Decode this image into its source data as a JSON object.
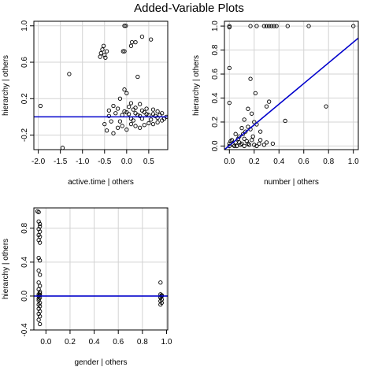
{
  "title": "Added-Variable Plots",
  "chart_data": [
    {
      "type": "scatter",
      "xlabel": "active.time | others",
      "ylabel": "hierarchy  | others",
      "xlim": [
        -2.1,
        0.93
      ],
      "ylim": [
        -0.36,
        1.05
      ],
      "xticks": [
        -2.0,
        -1.5,
        -1.0,
        -0.5,
        0.0,
        0.5
      ],
      "xtick_labels": [
        "-2.0",
        "-1.5",
        "-1.0",
        "-0.5",
        "0.0",
        "0.5"
      ],
      "yticks": [
        -0.2,
        0.2,
        0.6,
        1.0
      ],
      "ytick_labels": [
        "-0.2",
        "0.2",
        "0.6",
        "1.0"
      ],
      "grid": true,
      "fit_line": {
        "x": [
          -2.1,
          0.93
        ],
        "y": [
          0.0,
          0.0
        ],
        "color": "#0000cc"
      },
      "points": [
        [
          -1.95,
          0.12
        ],
        [
          -1.45,
          -0.34
        ],
        [
          -1.3,
          0.47
        ],
        [
          -0.6,
          0.66
        ],
        [
          -0.58,
          0.7
        ],
        [
          -0.55,
          0.74
        ],
        [
          -0.52,
          0.78
        ],
        [
          -0.5,
          0.68
        ],
        [
          -0.48,
          0.65
        ],
        [
          -0.45,
          0.72
        ],
        [
          -0.05,
          1.0
        ],
        [
          -0.02,
          1.0
        ],
        [
          -0.08,
          0.72
        ],
        [
          -0.05,
          0.72
        ],
        [
          0.1,
          0.78
        ],
        [
          0.12,
          0.82
        ],
        [
          0.2,
          0.82
        ],
        [
          0.35,
          0.88
        ],
        [
          0.55,
          0.85
        ],
        [
          0.25,
          0.44
        ],
        [
          -0.05,
          0.3
        ],
        [
          0.0,
          0.26
        ],
        [
          -0.15,
          0.2
        ],
        [
          0.1,
          0.15
        ],
        [
          0.3,
          0.14
        ],
        [
          -0.3,
          0.12
        ],
        [
          0.2,
          0.1
        ],
        [
          0.45,
          0.09
        ],
        [
          0.6,
          0.08
        ],
        [
          -0.2,
          0.09
        ],
        [
          0.05,
          0.11
        ],
        [
          -0.4,
          0.07
        ],
        [
          0.7,
          0.06
        ],
        [
          0.35,
          0.07
        ],
        [
          0.15,
          0.08
        ],
        [
          -0.35,
          -0.05
        ],
        [
          -0.5,
          -0.08
        ],
        [
          -0.45,
          -0.15
        ],
        [
          -0.3,
          -0.18
        ],
        [
          -0.2,
          -0.12
        ],
        [
          -0.1,
          -0.1
        ],
        [
          0.0,
          -0.14
        ],
        [
          0.1,
          -0.08
        ],
        [
          0.2,
          -0.1
        ],
        [
          0.3,
          -0.12
        ],
        [
          0.4,
          -0.09
        ],
        [
          0.5,
          -0.07
        ],
        [
          0.6,
          -0.08
        ],
        [
          0.7,
          -0.06
        ],
        [
          0.8,
          -0.04
        ],
        [
          0.85,
          -0.02
        ],
        [
          -0.25,
          0.04
        ],
        [
          0.05,
          0.03
        ],
        [
          0.25,
          0.02
        ],
        [
          0.45,
          0.03
        ],
        [
          0.65,
          0.01
        ],
        [
          -0.15,
          -0.05
        ],
        [
          0.15,
          -0.04
        ],
        [
          0.55,
          -0.03
        ],
        [
          -0.05,
          0.06
        ],
        [
          0.35,
          -0.02
        ],
        [
          0.75,
          0.02
        ],
        [
          -0.4,
          0.01
        ],
        [
          0.9,
          0.0
        ],
        [
          0.0,
          0.05
        ],
        [
          0.2,
          0.04
        ],
        [
          0.4,
          0.05
        ],
        [
          0.6,
          0.03
        ],
        [
          0.8,
          0.04
        ],
        [
          -0.1,
          0.02
        ],
        [
          0.1,
          -0.02
        ],
        [
          0.3,
          0.01
        ],
        [
          0.5,
          0.02
        ],
        [
          0.7,
          -0.01
        ]
      ]
    },
    {
      "type": "scatter",
      "xlabel": "number | others",
      "ylabel": "hierarchy  | others",
      "xlim": [
        -0.04,
        1.04
      ],
      "ylim": [
        -0.03,
        1.04
      ],
      "xticks": [
        0.0,
        0.2,
        0.4,
        0.6,
        0.8,
        1.0
      ],
      "xtick_labels": [
        "0.0",
        "0.2",
        "0.4",
        "0.6",
        "0.8",
        "1.0"
      ],
      "yticks": [
        0.0,
        0.2,
        0.4,
        0.6,
        0.8,
        1.0
      ],
      "ytick_labels": [
        "0.0",
        "0.2",
        "0.4",
        "0.6",
        "0.8",
        "1.0"
      ],
      "grid": true,
      "fit_line": {
        "x": [
          -0.04,
          1.04
        ],
        "y": [
          -0.03,
          0.9
        ],
        "color": "#0000cc"
      },
      "points": [
        [
          0.0,
          1.0
        ],
        [
          0.0,
          0.99
        ],
        [
          0.17,
          1.0
        ],
        [
          0.22,
          1.0
        ],
        [
          0.28,
          1.0
        ],
        [
          0.3,
          1.0
        ],
        [
          0.32,
          1.0
        ],
        [
          0.34,
          1.0
        ],
        [
          0.36,
          1.0
        ],
        [
          0.38,
          1.0
        ],
        [
          0.47,
          1.0
        ],
        [
          0.64,
          1.0
        ],
        [
          1.0,
          1.0
        ],
        [
          0.0,
          0.65
        ],
        [
          0.17,
          0.56
        ],
        [
          0.21,
          0.44
        ],
        [
          0.0,
          0.36
        ],
        [
          0.32,
          0.37
        ],
        [
          0.3,
          0.33
        ],
        [
          0.78,
          0.33
        ],
        [
          0.45,
          0.21
        ],
        [
          0.15,
          0.31
        ],
        [
          0.18,
          0.27
        ],
        [
          0.12,
          0.22
        ],
        [
          0.2,
          0.2
        ],
        [
          0.1,
          0.15
        ],
        [
          0.15,
          0.16
        ],
        [
          0.22,
          0.18
        ],
        [
          0.25,
          0.12
        ],
        [
          0.05,
          0.1
        ],
        [
          0.08,
          0.08
        ],
        [
          0.12,
          0.06
        ],
        [
          0.18,
          0.05
        ],
        [
          0.25,
          0.05
        ],
        [
          0.3,
          0.03
        ],
        [
          0.35,
          0.02
        ],
        [
          0.02,
          0.05
        ],
        [
          0.05,
          0.03
        ],
        [
          0.1,
          0.02
        ],
        [
          0.15,
          0.02
        ],
        [
          0.2,
          0.01
        ],
        [
          0.0,
          0.0
        ],
        [
          0.03,
          0.01
        ],
        [
          0.06,
          0.0
        ],
        [
          0.09,
          0.01
        ],
        [
          0.12,
          0.0
        ],
        [
          0.16,
          0.01
        ],
        [
          0.22,
          0.0
        ],
        [
          0.28,
          0.01
        ],
        [
          0.0,
          0.02
        ],
        [
          0.04,
          0.0
        ],
        [
          0.08,
          0.03
        ],
        [
          0.14,
          0.04
        ],
        [
          0.19,
          0.08
        ],
        [
          0.24,
          0.02
        ],
        [
          0.01,
          0.04
        ],
        [
          0.07,
          0.06
        ],
        [
          0.11,
          0.1
        ],
        [
          0.13,
          0.12
        ],
        [
          0.17,
          0.14
        ]
      ]
    },
    {
      "type": "scatter",
      "xlabel": "gender | others",
      "ylabel": "hierarchy  | others",
      "xlim": [
        -0.1,
        1.01
      ],
      "ylim": [
        -0.4,
        1.04
      ],
      "xticks": [
        0.0,
        0.2,
        0.4,
        0.6,
        0.8,
        1.0
      ],
      "xtick_labels": [
        "0.0",
        "0.2",
        "0.4",
        "0.6",
        "0.8",
        "1.0"
      ],
      "yticks": [
        -0.4,
        0.0,
        0.4,
        0.8
      ],
      "ytick_labels": [
        "-0.4",
        "0.0",
        "0.4",
        "0.8"
      ],
      "grid": true,
      "fit_line": {
        "x": [
          -0.1,
          1.01
        ],
        "y": [
          0.0,
          0.0
        ],
        "color": "#0000cc"
      },
      "points": [
        [
          -0.07,
          1.0
        ],
        [
          -0.06,
          0.99
        ],
        [
          -0.06,
          0.88
        ],
        [
          -0.05,
          0.85
        ],
        [
          -0.05,
          0.82
        ],
        [
          -0.06,
          0.79
        ],
        [
          -0.05,
          0.76
        ],
        [
          -0.06,
          0.72
        ],
        [
          -0.05,
          0.7
        ],
        [
          -0.06,
          0.66
        ],
        [
          -0.05,
          0.63
        ],
        [
          -0.06,
          0.45
        ],
        [
          -0.05,
          0.42
        ],
        [
          -0.06,
          0.3
        ],
        [
          -0.05,
          0.25
        ],
        [
          -0.06,
          0.16
        ],
        [
          -0.05,
          0.12
        ],
        [
          -0.06,
          0.08
        ],
        [
          -0.05,
          0.05
        ],
        [
          -0.06,
          0.02
        ],
        [
          -0.05,
          -0.02
        ],
        [
          -0.06,
          -0.05
        ],
        [
          -0.05,
          -0.08
        ],
        [
          -0.06,
          -0.1
        ],
        [
          -0.05,
          -0.12
        ],
        [
          -0.06,
          -0.15
        ],
        [
          -0.05,
          -0.18
        ],
        [
          -0.06,
          -0.21
        ],
        [
          -0.05,
          -0.24
        ],
        [
          -0.06,
          -0.28
        ],
        [
          -0.05,
          -0.33
        ],
        [
          -0.06,
          0.0
        ],
        [
          -0.05,
          0.01
        ],
        [
          -0.06,
          -0.03
        ],
        [
          -0.05,
          0.03
        ],
        [
          0.95,
          0.16
        ],
        [
          0.95,
          0.02
        ],
        [
          0.96,
          0.0
        ],
        [
          0.95,
          -0.02
        ],
        [
          0.96,
          -0.04
        ],
        [
          0.95,
          -0.06
        ],
        [
          0.96,
          -0.08
        ],
        [
          0.95,
          -0.1
        ],
        [
          0.96,
          0.01
        ],
        [
          0.95,
          -0.01
        ]
      ]
    }
  ]
}
